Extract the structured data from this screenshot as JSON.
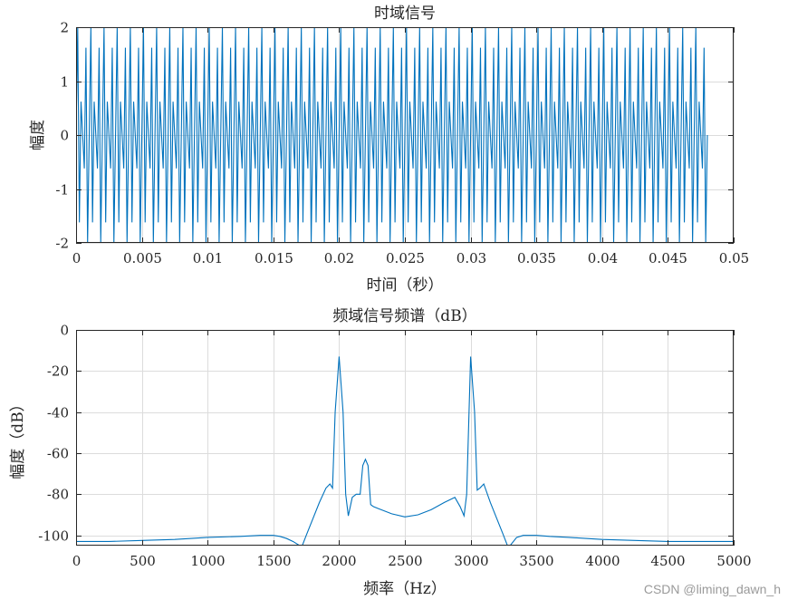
{
  "watermark": "CSDN @liming_dawn_h",
  "chart_data": [
    {
      "type": "line",
      "title": "时域信号",
      "xlabel": "时间（秒）",
      "ylabel": "幅度",
      "xlim": [
        0,
        0.05
      ],
      "ylim": [
        -2,
        2
      ],
      "xticks": [
        0,
        0.005,
        0.01,
        0.015,
        0.02,
        0.025,
        0.03,
        0.035,
        0.04,
        0.045,
        0.05
      ],
      "xtick_labels": [
        "0",
        "0.005",
        "0.01",
        "0.015",
        "0.02",
        "0.025",
        "0.03",
        "0.035",
        "0.04",
        "0.045",
        "0.05"
      ],
      "yticks": [
        -2,
        -1,
        0,
        1,
        2
      ],
      "ytick_labels": [
        "-2",
        "-1",
        "0",
        "1",
        "2"
      ],
      "grid": true,
      "color": "#0072BD",
      "signal": {
        "period_s": 0.001,
        "duration_s": 0.0475,
        "pattern_y": [
          0,
          2,
          -1.62,
          0.62,
          0,
          -0.62,
          1.62,
          -2,
          0
        ]
      }
    },
    {
      "type": "line",
      "title": "频域信号频谱（dB）",
      "xlabel": "频率（Hz）",
      "ylabel": "幅度（dB）",
      "xlim": [
        0,
        5000
      ],
      "ylim": [
        -105,
        0
      ],
      "xticks": [
        0,
        500,
        1000,
        1500,
        2000,
        2500,
        3000,
        3500,
        4000,
        4500,
        5000
      ],
      "xtick_labels": [
        "0",
        "500",
        "1000",
        "1500",
        "2000",
        "2500",
        "3000",
        "3500",
        "4000",
        "4500",
        "5000"
      ],
      "yticks": [
        0,
        -20,
        -40,
        -60,
        -80,
        -100
      ],
      "ytick_labels": [
        "0",
        "-20",
        "-40",
        "-60",
        "-80",
        "-100"
      ],
      "grid": true,
      "color": "#0072BD",
      "x": [
        0,
        250,
        500,
        750,
        1000,
        1250,
        1400,
        1500,
        1550,
        1600,
        1650,
        1700,
        1720,
        1750,
        1800,
        1850,
        1900,
        1930,
        1950,
        1970,
        2000,
        2030,
        2050,
        2070,
        2100,
        2130,
        2160,
        2180,
        2200,
        2220,
        2240,
        2260,
        2300,
        2400,
        2500,
        2600,
        2700,
        2800,
        2880,
        2920,
        2950,
        2970,
        3000,
        3030,
        3050,
        3070,
        3100,
        3150,
        3200,
        3250,
        3280,
        3300,
        3350,
        3400,
        3450,
        3500,
        3600,
        3750,
        4000,
        4250,
        4500,
        4750,
        5000
      ],
      "y": [
        -103,
        -103,
        -102.5,
        -102,
        -101,
        -100.5,
        -100,
        -100,
        -100.5,
        -101.5,
        -103,
        -105,
        -105,
        -100,
        -92,
        -84,
        -77,
        -75,
        -77,
        -40,
        -13,
        -40,
        -80,
        -90.5,
        -81.5,
        -80,
        -80,
        -66,
        -63,
        -66,
        -85,
        -86,
        -87,
        -89.5,
        -91,
        -90,
        -87.5,
        -84,
        -81.5,
        -86,
        -90.5,
        -80,
        -13,
        -40,
        -78,
        -77,
        -75,
        -84,
        -92,
        -100,
        -105,
        -105,
        -101,
        -100,
        -100,
        -100,
        -100.5,
        -101,
        -102,
        -102.5,
        -103,
        -103,
        -103
      ]
    }
  ]
}
